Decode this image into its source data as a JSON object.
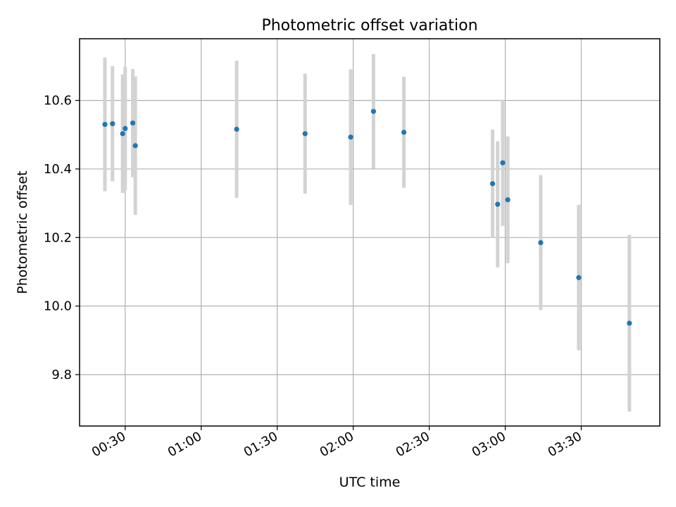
{
  "chart_data": {
    "type": "scatter",
    "title": "Photometric offset variation",
    "xlabel": "UTC time",
    "ylabel": "Photometric offset",
    "x_unit": "time (HH:MM)",
    "xlim": [
      "00:12",
      "04:01"
    ],
    "ylim": [
      9.65,
      10.78
    ],
    "grid": true,
    "x_ticks": [
      "00:30",
      "01:00",
      "01:30",
      "02:00",
      "02:30",
      "03:00",
      "03:30"
    ],
    "y_ticks": [
      9.8,
      10.0,
      10.2,
      10.4,
      10.6
    ],
    "y_tick_labels": [
      "9.8",
      "10.0",
      "10.2",
      "10.4",
      "10.6"
    ],
    "series": [
      {
        "marker_color": "#1f77b4",
        "errorbar_color": "#d3d3d3",
        "points": [
          {
            "x": "00:22",
            "y": 10.53,
            "err": 0.195
          },
          {
            "x": "00:25",
            "y": 10.532,
            "err": 0.168
          },
          {
            "x": "00:29",
            "y": 10.503,
            "err": 0.173
          },
          {
            "x": "00:30",
            "y": 10.518,
            "err": 0.18
          },
          {
            "x": "00:33",
            "y": 10.534,
            "err": 0.158
          },
          {
            "x": "00:34",
            "y": 10.468,
            "err": 0.202
          },
          {
            "x": "01:14",
            "y": 10.516,
            "err": 0.2
          },
          {
            "x": "01:41",
            "y": 10.503,
            "err": 0.175
          },
          {
            "x": "01:59",
            "y": 10.493,
            "err": 0.198
          },
          {
            "x": "02:08",
            "y": 10.568,
            "err": 0.167
          },
          {
            "x": "02:20",
            "y": 10.507,
            "err": 0.162
          },
          {
            "x": "02:55",
            "y": 10.357,
            "err": 0.158
          },
          {
            "x": "02:57",
            "y": 10.297,
            "err": 0.184
          },
          {
            "x": "02:59",
            "y": 10.418,
            "err": 0.184
          },
          {
            "x": "03:01",
            "y": 10.31,
            "err": 0.185
          },
          {
            "x": "03:14",
            "y": 10.185,
            "err": 0.197
          },
          {
            "x": "03:29",
            "y": 10.083,
            "err": 0.212
          },
          {
            "x": "03:49",
            "y": 9.95,
            "err": 0.258
          }
        ]
      }
    ]
  }
}
